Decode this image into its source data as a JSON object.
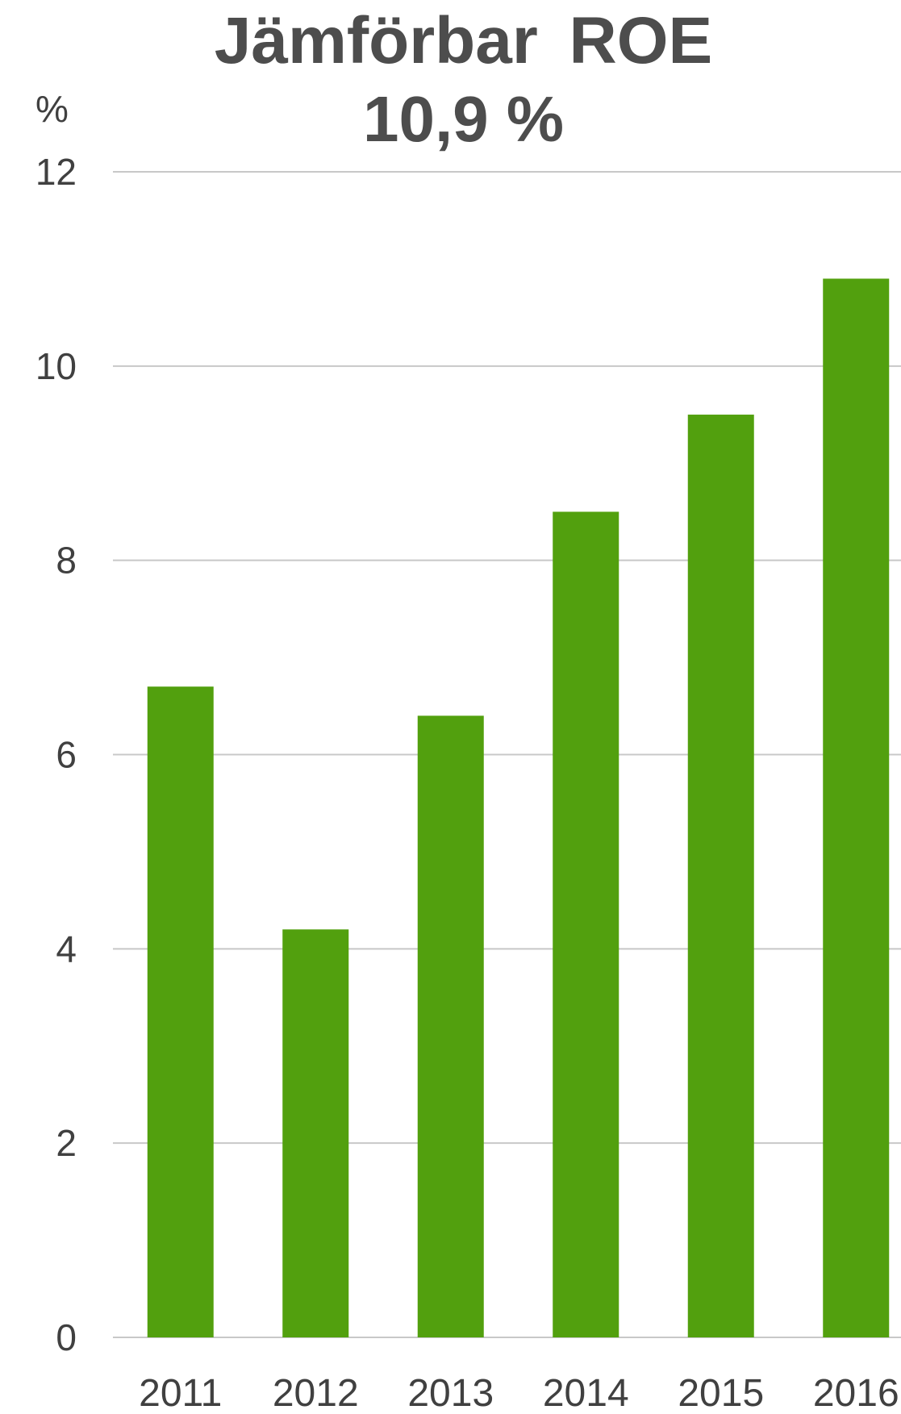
{
  "chart_data": {
    "type": "bar",
    "title": "Jämförbar ROE",
    "subtitle": "10,9 %",
    "ylabel": "%",
    "xlabel": "",
    "categories": [
      "2011",
      "2012",
      "2013",
      "2014",
      "2015",
      "2016"
    ],
    "values": [
      6.7,
      4.2,
      6.4,
      8.5,
      9.5,
      10.9
    ],
    "ylim": [
      0,
      12
    ],
    "yticks": [
      0,
      2,
      4,
      6,
      8,
      10,
      12
    ],
    "grid": true,
    "legend": "none",
    "bar_color": "#52a00e",
    "grid_color": "#c8c8c8",
    "text_color": "#404040",
    "title_color": "#4d4d4d"
  }
}
